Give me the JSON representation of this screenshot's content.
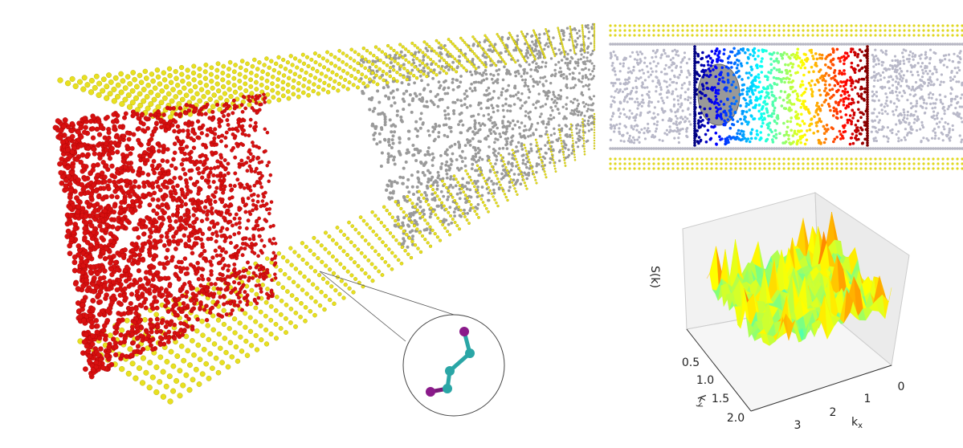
{
  "figure": {
    "surface_plot": {
      "z_label": "S(k)",
      "x_label": {
        "base": "k",
        "sub": "x"
      },
      "y_label": {
        "base": "k",
        "sub": "y"
      },
      "x_ticks": [
        "0",
        "1",
        "2",
        "3"
      ],
      "y_ticks": [
        "0.5",
        "1.0",
        "1.5",
        "2.0"
      ]
    }
  }
}
